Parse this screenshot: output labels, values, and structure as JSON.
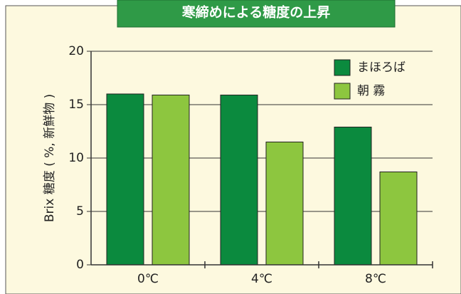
{
  "chart_data": {
    "type": "bar",
    "title": "寒締めによる糖度の上昇",
    "ylabel": "Brix 糖度 ( %, 新鮮物 )",
    "categories": [
      "0℃",
      "4℃",
      "8℃"
    ],
    "series": [
      {
        "name": "まほろば",
        "color": "#0b8a3e",
        "values": [
          16,
          15.9,
          12.9
        ]
      },
      {
        "name": "朝 霧",
        "color": "#8dc63f",
        "values": [
          15.9,
          11.5,
          8.7
        ]
      }
    ],
    "ylim": [
      0,
      20
    ],
    "yticks": [
      0,
      5,
      10,
      15,
      20
    ],
    "grid": true,
    "legend": "upper right"
  }
}
